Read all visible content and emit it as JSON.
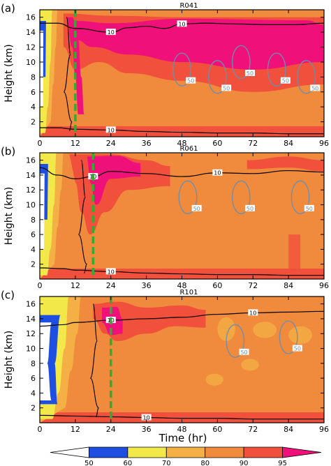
{
  "figure": {
    "xlabel": "Time  (hr)",
    "colorbar": {
      "ticks": [
        "50",
        "60",
        "70",
        "80",
        "90",
        "95"
      ],
      "colors": [
        "#ffffff",
        "#1f4fe0",
        "#f2e84a",
        "#f4b044",
        "#f08a3c",
        "#f0503c",
        "#f0107a"
      ]
    },
    "palette": {
      "blue": "#1f4fe0",
      "yellow": "#f2e84a",
      "lightorange": "#f4b044",
      "orange": "#f08a3c",
      "red": "#f0503c",
      "magenta": "#f0107a",
      "contour10": "#000000",
      "contour50": "#6a8fb0",
      "marker": "#33aa33"
    }
  },
  "chart_data": [
    {
      "type": "heatmap",
      "panel_label": "(a)",
      "title": "R041",
      "xlabel": "",
      "ylabel": "Height  (km)",
      "xlim": [
        0,
        96
      ],
      "ylim": [
        0,
        17
      ],
      "xticks": [
        "0",
        "12",
        "24",
        "36",
        "48",
        "60",
        "72",
        "84",
        "96"
      ],
      "yticks": [
        "2",
        "4",
        "6",
        "8",
        "10",
        "12",
        "14",
        "16"
      ],
      "marker_time": 12,
      "contour_labels": [
        "10",
        "50"
      ],
      "boundary_10_top": [
        [
          0,
          15.2
        ],
        [
          6,
          15.2
        ],
        [
          12,
          14.5
        ],
        [
          24,
          14.0
        ],
        [
          30,
          14.6
        ],
        [
          36,
          14.8
        ],
        [
          42,
          14.5
        ],
        [
          48,
          15.1
        ],
        [
          56,
          15.2
        ],
        [
          66,
          15.1
        ],
        [
          78,
          15.0
        ],
        [
          86,
          15.0
        ],
        [
          96,
          15.2
        ]
      ],
      "boundary_10_bottom": [
        [
          0,
          1.2
        ],
        [
          6,
          1.2
        ],
        [
          12,
          1.0
        ],
        [
          24,
          0.9
        ],
        [
          36,
          0.7
        ],
        [
          48,
          0.6
        ],
        [
          60,
          0.5
        ],
        [
          72,
          0.5
        ],
        [
          84,
          0.4
        ],
        [
          96,
          0.4
        ]
      ]
    },
    {
      "type": "heatmap",
      "panel_label": "(b)",
      "title": "R061",
      "xlabel": "",
      "ylabel": "Height  (km)",
      "xlim": [
        0,
        96
      ],
      "ylim": [
        0,
        17
      ],
      "xticks": [
        "0",
        "12",
        "24",
        "36",
        "48",
        "60",
        "72",
        "84",
        "96"
      ],
      "yticks": [
        "2",
        "4",
        "6",
        "8",
        "10",
        "12",
        "14",
        "16"
      ],
      "marker_time": 18,
      "contour_labels": [
        "10",
        "50"
      ],
      "boundary_10_top": [
        [
          0,
          15.0
        ],
        [
          6,
          14.0
        ],
        [
          12,
          13.5
        ],
        [
          18,
          13.8
        ],
        [
          24,
          14.5
        ],
        [
          36,
          14.2
        ],
        [
          48,
          13.8
        ],
        [
          60,
          14.3
        ],
        [
          72,
          14.2
        ],
        [
          84,
          14.6
        ],
        [
          96,
          14.4
        ]
      ],
      "boundary_10_bottom": [
        [
          0,
          1.5
        ],
        [
          8,
          1.4
        ],
        [
          12,
          1.2
        ],
        [
          24,
          1.0
        ],
        [
          36,
          0.8
        ],
        [
          48,
          0.7
        ],
        [
          60,
          0.6
        ],
        [
          72,
          0.6
        ],
        [
          84,
          0.5
        ],
        [
          96,
          0.5
        ]
      ]
    },
    {
      "type": "heatmap",
      "panel_label": "(c)",
      "title": "R101",
      "xlabel": "Time  (hr)",
      "ylabel": "Height  (km)",
      "xlim": [
        0,
        96
      ],
      "ylim": [
        0,
        17
      ],
      "xticks": [
        "0",
        "12",
        "24",
        "36",
        "48",
        "60",
        "72",
        "84",
        "96"
      ],
      "yticks": [
        "2",
        "4",
        "6",
        "8",
        "10",
        "12",
        "14",
        "16"
      ],
      "marker_time": 24,
      "contour_labels": [
        "10",
        "50"
      ],
      "boundary_10_top": [
        [
          0,
          13.0
        ],
        [
          8,
          13.2
        ],
        [
          12,
          13.5
        ],
        [
          24,
          13.8
        ],
        [
          36,
          14.0
        ],
        [
          48,
          14.2
        ],
        [
          60,
          14.6
        ],
        [
          72,
          14.8
        ],
        [
          84,
          14.9
        ],
        [
          96,
          15.0
        ]
      ],
      "boundary_10_bottom": [
        [
          0,
          1.0
        ],
        [
          12,
          0.9
        ],
        [
          24,
          0.8
        ],
        [
          36,
          0.7
        ],
        [
          48,
          0.6
        ],
        [
          60,
          0.6
        ],
        [
          72,
          0.5
        ],
        [
          84,
          0.5
        ],
        [
          96,
          0.5
        ]
      ]
    }
  ]
}
